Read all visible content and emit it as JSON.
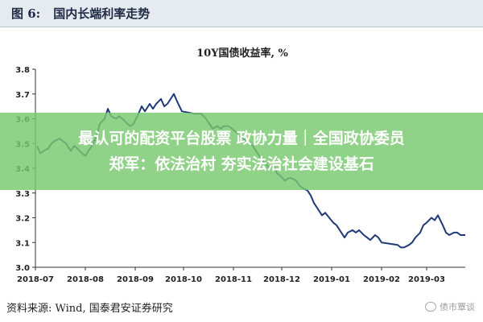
{
  "header": {
    "figure_label": "图 6:",
    "figure_title": "国内长端利率走势"
  },
  "banner": {
    "line1": "最认可的配资平台股票 政协力量｜全国政协委员",
    "line2": "郑军：依法治村 夯实法治社会建设基石"
  },
  "footer": {
    "source": "资料来源: Wind, 国泰君安证券研究",
    "watermark": "债市覃谈"
  },
  "colors": {
    "line": "#1f3a78",
    "axis": "#333333",
    "header_bg": "#e6ebf1",
    "banner": "#78c86e"
  },
  "chart_data": {
    "type": "line",
    "title": "10Y国债收益率, %",
    "ylim": [
      3.0,
      3.8
    ],
    "yticks": [
      "3.0",
      "3.1",
      "3.2",
      "3.3",
      "3.4",
      "3.5",
      "3.6",
      "3.7",
      "3.8"
    ],
    "xlim": [
      "2018-07-01",
      "2019-03-25"
    ],
    "xticks": [
      "2018-07",
      "2018-08",
      "2018-09",
      "2018-10",
      "2018-11",
      "2018-12",
      "2019-01",
      "2019-02",
      "2019-03"
    ],
    "grid": false,
    "series": [
      {
        "values": [
          [
            "2018-07-02",
            3.49
          ],
          [
            "2018-07-04",
            3.46
          ],
          [
            "2018-07-06",
            3.47
          ],
          [
            "2018-07-09",
            3.48
          ],
          [
            "2018-07-11",
            3.5
          ],
          [
            "2018-07-13",
            3.51
          ],
          [
            "2018-07-16",
            3.52
          ],
          [
            "2018-07-18",
            3.51
          ],
          [
            "2018-07-20",
            3.5
          ],
          [
            "2018-07-23",
            3.47
          ],
          [
            "2018-07-25",
            3.49
          ],
          [
            "2018-07-27",
            3.48
          ],
          [
            "2018-07-30",
            3.46
          ],
          [
            "2018-08-01",
            3.45
          ],
          [
            "2018-08-03",
            3.47
          ],
          [
            "2018-08-06",
            3.5
          ],
          [
            "2018-08-08",
            3.53
          ],
          [
            "2018-08-10",
            3.58
          ],
          [
            "2018-08-13",
            3.6
          ],
          [
            "2018-08-15",
            3.64
          ],
          [
            "2018-08-17",
            3.61
          ],
          [
            "2018-08-20",
            3.6
          ],
          [
            "2018-08-22",
            3.61
          ],
          [
            "2018-08-24",
            3.6
          ],
          [
            "2018-08-27",
            3.58
          ],
          [
            "2018-08-29",
            3.57
          ],
          [
            "2018-08-31",
            3.58
          ],
          [
            "2018-09-03",
            3.62
          ],
          [
            "2018-09-05",
            3.65
          ],
          [
            "2018-09-07",
            3.63
          ],
          [
            "2018-09-10",
            3.66
          ],
          [
            "2018-09-12",
            3.64
          ],
          [
            "2018-09-14",
            3.66
          ],
          [
            "2018-09-17",
            3.68
          ],
          [
            "2018-09-19",
            3.65
          ],
          [
            "2018-09-21",
            3.66
          ],
          [
            "2018-09-25",
            3.7
          ],
          [
            "2018-09-27",
            3.67
          ],
          [
            "2018-09-30",
            3.63
          ],
          [
            "2018-10-08",
            3.62
          ],
          [
            "2018-10-10",
            3.62
          ],
          [
            "2018-10-12",
            3.62
          ],
          [
            "2018-10-15",
            3.6
          ],
          [
            "2018-10-17",
            3.58
          ],
          [
            "2018-10-19",
            3.56
          ],
          [
            "2018-10-22",
            3.57
          ],
          [
            "2018-10-24",
            3.56
          ],
          [
            "2018-10-26",
            3.57
          ],
          [
            "2018-10-29",
            3.57
          ],
          [
            "2018-10-31",
            3.56
          ],
          [
            "2018-11-02",
            3.55
          ],
          [
            "2018-11-05",
            3.53
          ],
          [
            "2018-11-07",
            3.52
          ],
          [
            "2018-11-09",
            3.51
          ],
          [
            "2018-11-12",
            3.5
          ],
          [
            "2018-11-14",
            3.48
          ],
          [
            "2018-11-16",
            3.46
          ],
          [
            "2018-11-19",
            3.43
          ],
          [
            "2018-11-21",
            3.42
          ],
          [
            "2018-11-23",
            3.4
          ],
          [
            "2018-11-26",
            3.41
          ],
          [
            "2018-11-28",
            3.38
          ],
          [
            "2018-11-30",
            3.37
          ],
          [
            "2018-12-03",
            3.35
          ],
          [
            "2018-12-05",
            3.36
          ],
          [
            "2018-12-07",
            3.36
          ],
          [
            "2018-12-10",
            3.35
          ],
          [
            "2018-12-12",
            3.33
          ],
          [
            "2018-12-14",
            3.32
          ],
          [
            "2018-12-17",
            3.31
          ],
          [
            "2018-12-19",
            3.29
          ],
          [
            "2018-12-21",
            3.26
          ],
          [
            "2018-12-24",
            3.23
          ],
          [
            "2018-12-26",
            3.21
          ],
          [
            "2018-12-28",
            3.22
          ],
          [
            "2019-01-02",
            3.18
          ],
          [
            "2019-01-04",
            3.17
          ],
          [
            "2019-01-07",
            3.14
          ],
          [
            "2019-01-09",
            3.12
          ],
          [
            "2019-01-11",
            3.14
          ],
          [
            "2019-01-14",
            3.15
          ],
          [
            "2019-01-16",
            3.14
          ],
          [
            "2019-01-18",
            3.15
          ],
          [
            "2019-01-21",
            3.13
          ],
          [
            "2019-01-23",
            3.12
          ],
          [
            "2019-01-25",
            3.11
          ],
          [
            "2019-01-28",
            3.13
          ],
          [
            "2019-01-30",
            3.12
          ],
          [
            "2019-02-01",
            3.1
          ],
          [
            "2019-02-11",
            3.09
          ],
          [
            "2019-02-13",
            3.08
          ],
          [
            "2019-02-15",
            3.08
          ],
          [
            "2019-02-18",
            3.09
          ],
          [
            "2019-02-20",
            3.1
          ],
          [
            "2019-02-22",
            3.12
          ],
          [
            "2019-02-25",
            3.14
          ],
          [
            "2019-02-27",
            3.17
          ],
          [
            "2019-03-01",
            3.18
          ],
          [
            "2019-03-04",
            3.2
          ],
          [
            "2019-03-06",
            3.19
          ],
          [
            "2019-03-08",
            3.21
          ],
          [
            "2019-03-11",
            3.17
          ],
          [
            "2019-03-13",
            3.14
          ],
          [
            "2019-03-15",
            3.13
          ],
          [
            "2019-03-18",
            3.14
          ],
          [
            "2019-03-20",
            3.14
          ],
          [
            "2019-03-22",
            3.13
          ],
          [
            "2019-03-25",
            3.13
          ]
        ]
      }
    ]
  }
}
